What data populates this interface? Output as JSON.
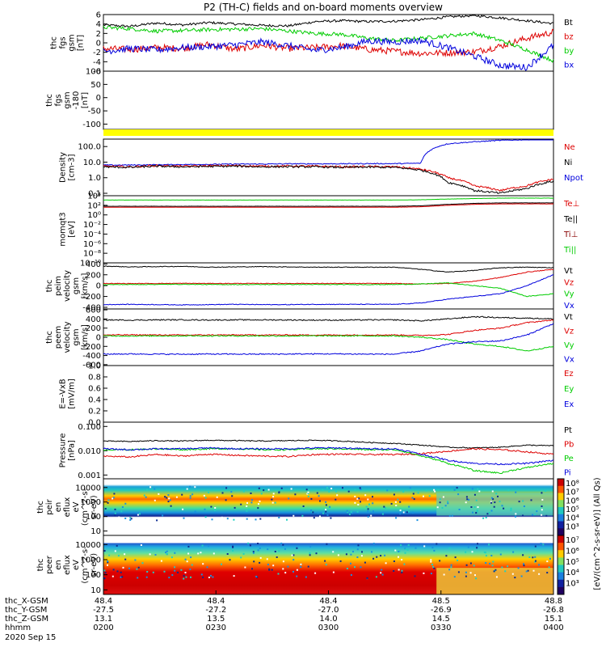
{
  "chart_data": {
    "type": "line",
    "title": "P2 (TH-C) fields and on-board moments overview",
    "date": "2020 Sep 15",
    "panels": [
      {
        "id": "fgs",
        "ylabel": [
          "thc",
          "fgs",
          "gsm",
          "[nT]"
        ],
        "yticks": [
          "6",
          "4",
          "2",
          "0",
          "-2",
          "-4",
          "-6"
        ],
        "legend": [
          {
            "name": "Bt",
            "color": "#000000"
          },
          {
            "name": "bz",
            "color": "#dd0000"
          },
          {
            "name": "by",
            "color": "#00cc00"
          },
          {
            "name": "bx",
            "color": "#0000dd"
          }
        ],
        "ylim": [
          -6,
          6
        ],
        "series": [
          {
            "name": "Bt",
            "color": "#000000",
            "noise": 0.25,
            "y": [
              3.8,
              3.5,
              4.2,
              3.8,
              4.3,
              4.0,
              3.7,
              3.6,
              4.5,
              4.7,
              4.5,
              4.6,
              4.9,
              5.5,
              5.8,
              5.3,
              4.7,
              4.1
            ]
          },
          {
            "name": "bz",
            "color": "#dd0000",
            "noise": 0.7,
            "y": [
              -1.2,
              -1.4,
              -1.0,
              -1.2,
              -0.3,
              -1.4,
              -0.5,
              -1.2,
              -1.0,
              -0.6,
              -1.4,
              -1.8,
              -2.2,
              -2.1,
              -1.9,
              -0.7,
              1.0,
              2.3
            ]
          },
          {
            "name": "by",
            "color": "#00cc00",
            "noise": 0.4,
            "y": [
              3.3,
              3.0,
              2.5,
              2.6,
              2.8,
              2.9,
              3.0,
              2.5,
              2.0,
              1.8,
              1.0,
              0.5,
              1.0,
              1.5,
              2.0,
              0.5,
              -1.5,
              -3.8
            ]
          },
          {
            "name": "bx",
            "color": "#0000dd",
            "noise": 0.7,
            "y": [
              -1.8,
              -1.2,
              -1.5,
              -1.0,
              -0.8,
              -0.4,
              0.2,
              -0.6,
              -1.6,
              -1.0,
              0.4,
              0.2,
              0.5,
              -1.0,
              -2.8,
              -4.8,
              -5.2,
              -0.5
            ]
          }
        ]
      },
      {
        "id": "fgs-theta",
        "ylabel": [
          "thc",
          "fgs",
          "gsm",
          "-180",
          "[nT]"
        ],
        "yticks": [
          "100",
          "50",
          "0",
          "-50",
          "-100"
        ],
        "legend": [],
        "ylim": [
          -120,
          100
        ],
        "series": []
      },
      {
        "id": "flag",
        "ylabel": [],
        "yticks": [],
        "legend": [],
        "bar_color": "#ffff00"
      },
      {
        "id": "density",
        "ylabel": [
          "Density",
          "[cm-3]"
        ],
        "yticks": [
          "100.0",
          "10.0",
          "1.0",
          "0.1"
        ],
        "ylog": [
          0.07,
          300
        ],
        "legend": [
          {
            "name": "Ne",
            "color": "#dd0000"
          },
          {
            "name": "Ni",
            "color": "#000000"
          },
          {
            "name": "Npot",
            "color": "#0000dd"
          }
        ],
        "series": [
          {
            "name": "Npot",
            "color": "#0000dd",
            "noise": 0.03,
            "y": [
              6.5,
              6.5,
              6.8,
              7.0,
              7.2,
              7.5,
              7.5,
              7.8,
              7.8,
              7.8,
              8.0,
              8.0,
              8.5,
              150,
              200,
              250,
              280,
              300
            ]
          },
          {
            "name": "Ne",
            "color": "#dd0000",
            "noise": 0.06,
            "y": [
              5.5,
              5.0,
              6.0,
              5.5,
              5.8,
              6.0,
              5.5,
              5.6,
              5.5,
              5.0,
              5.2,
              5.0,
              3.5,
              1.0,
              0.3,
              0.15,
              0.3,
              0.8
            ]
          },
          {
            "name": "Ni",
            "color": "#000000",
            "noise": 0.06,
            "y": [
              5.0,
              4.6,
              5.5,
              5.0,
              5.3,
              5.5,
              5.0,
              5.1,
              5.0,
              4.6,
              4.8,
              4.6,
              3.0,
              0.5,
              0.15,
              0.1,
              0.2,
              0.6
            ]
          }
        ]
      },
      {
        "id": "moments-temp",
        "ylabel": [
          "momqt3",
          "[eV]"
        ],
        "yticks": [
          "10⁴",
          "10²",
          "10⁰",
          "10⁻²",
          "10⁻⁴",
          "10⁻⁶",
          "10⁻⁸",
          "10⁻¹⁰"
        ],
        "ylim": [
          -10,
          4
        ],
        "legend": [
          {
            "name": "Te⊥",
            "color": "#dd0000"
          },
          {
            "name": "Te||",
            "color": "#000000"
          },
          {
            "name": "Ti⊥",
            "color": "#880000"
          },
          {
            "name": "Ti||",
            "color": "#00cc00"
          }
        ],
        "series": [
          {
            "name": "Ti||",
            "color": "#00cc00",
            "noise": 0.02,
            "y": [
              3.1,
              3.1,
              3.1,
              3.1,
              3.1,
              3.1,
              3.1,
              3.1,
              3.1,
              3.1,
              3.1,
              3.1,
              3.15,
              3.3,
              3.4,
              3.5,
              3.5,
              3.5
            ]
          },
          {
            "name": "Te||",
            "color": "#000000",
            "noise": 0.02,
            "y": [
              1.8,
              1.8,
              1.8,
              1.8,
              1.8,
              1.8,
              1.8,
              1.8,
              1.8,
              1.8,
              1.8,
              1.8,
              1.9,
              2.2,
              2.4,
              2.5,
              2.5,
              2.5
            ]
          },
          {
            "name": "Te⊥",
            "color": "#dd0000",
            "noise": 0.02,
            "y": [
              1.6,
              1.6,
              1.6,
              1.6,
              1.6,
              1.6,
              1.6,
              1.6,
              1.6,
              1.6,
              1.6,
              1.6,
              1.7,
              2.0,
              2.2,
              2.3,
              2.3,
              2.3
            ]
          }
        ]
      },
      {
        "id": "peim",
        "ylabel": [
          "thc",
          "peim",
          "velocity",
          "gsm",
          "[km/s]"
        ],
        "yticks": [
          "400",
          "200",
          "0",
          "-200",
          "-400"
        ],
        "ylim": [
          -430,
          420
        ],
        "legend": [
          {
            "name": "Vt",
            "color": "#000000"
          },
          {
            "name": "Vz",
            "color": "#dd0000"
          },
          {
            "name": "Vy",
            "color": "#00cc00"
          },
          {
            "name": "Vx",
            "color": "#0000dd"
          }
        ],
        "series": [
          {
            "name": "Vt",
            "color": "#000000",
            "noise": 6,
            "y": [
              360,
              345,
              350,
              355,
              340,
              345,
              350,
              345,
              340,
              340,
              340,
              340,
              300,
              250,
              280,
              330,
              340,
              330
            ]
          },
          {
            "name": "Vz",
            "color": "#dd0000",
            "noise": 6,
            "y": [
              40,
              38,
              40,
              42,
              40,
              40,
              40,
              42,
              40,
              40,
              40,
              40,
              30,
              40,
              80,
              150,
              250,
              300
            ]
          },
          {
            "name": "Vy",
            "color": "#00cc00",
            "noise": 6,
            "y": [
              20,
              20,
              22,
              25,
              20,
              20,
              20,
              22,
              20,
              20,
              20,
              20,
              30,
              50,
              0,
              -50,
              -200,
              -150
            ]
          },
          {
            "name": "Vx",
            "color": "#0000dd",
            "noise": 6,
            "y": [
              -350,
              -345,
              -350,
              -355,
              -350,
              -345,
              -350,
              -350,
              -345,
              -345,
              -345,
              -345,
              -320,
              -250,
              -200,
              -150,
              0,
              200
            ]
          }
        ]
      },
      {
        "id": "peem",
        "ylabel": [
          "thc",
          "peem",
          "velocity",
          "gsm",
          "[km/s]"
        ],
        "yticks": [
          "600",
          "400",
          "200",
          "0",
          "-200",
          "-400",
          "-600"
        ],
        "ylim": [
          -620,
          620
        ],
        "legend": [
          {
            "name": "Vt",
            "color": "#000000"
          },
          {
            "name": "Vz",
            "color": "#dd0000"
          },
          {
            "name": "Vy",
            "color": "#00cc00"
          },
          {
            "name": "Vx",
            "color": "#0000dd"
          }
        ],
        "series": [
          {
            "name": "Vt",
            "color": "#000000",
            "noise": 12,
            "y": [
              380,
              375,
              380,
              382,
              378,
              380,
              380,
              378,
              375,
              375,
              380,
              380,
              360,
              400,
              450,
              430,
              420,
              400
            ]
          },
          {
            "name": "Vz",
            "color": "#dd0000",
            "noise": 12,
            "y": [
              50,
              52,
              50,
              48,
              50,
              50,
              50,
              50,
              48,
              48,
              50,
              50,
              40,
              60,
              150,
              200,
              320,
              380
            ]
          },
          {
            "name": "Vy",
            "color": "#00cc00",
            "noise": 12,
            "y": [
              30,
              28,
              30,
              32,
              30,
              30,
              30,
              28,
              30,
              30,
              30,
              30,
              0,
              -50,
              -150,
              -200,
              -300,
              -200
            ]
          },
          {
            "name": "Vx",
            "color": "#0000dd",
            "noise": 12,
            "y": [
              -370,
              -365,
              -370,
              -372,
              -368,
              -370,
              -370,
              -368,
              -365,
              -365,
              -370,
              -370,
              -300,
              -150,
              -100,
              -80,
              50,
              300
            ]
          }
        ]
      },
      {
        "id": "efield",
        "ylabel": [
          "E=-VxB",
          "[mV/m]"
        ],
        "yticks": [
          "1.0",
          "0.8",
          "0.6",
          "0.4",
          "0.2",
          "0.0"
        ],
        "ylim": [
          0,
          1
        ],
        "legend": [
          {
            "name": "Ez",
            "color": "#dd0000"
          },
          {
            "name": "Ey",
            "color": "#00cc00"
          },
          {
            "name": "Ex",
            "color": "#0000dd"
          }
        ],
        "series": []
      },
      {
        "id": "pressure",
        "ylabel": [
          "Pressure",
          "[nPa]"
        ],
        "yticks": [
          "0.100",
          "0.010",
          "0.001"
        ],
        "ylog": [
          0.0007,
          0.15
        ],
        "legend": [
          {
            "name": "Pt",
            "color": "#000000"
          },
          {
            "name": "Pb",
            "color": "#dd0000"
          },
          {
            "name": "Pe",
            "color": "#00cc00"
          },
          {
            "name": "Pi",
            "color": "#0000dd"
          }
        ],
        "series": [
          {
            "name": "Pt",
            "color": "#000000",
            "noise": 0.02,
            "y": [
              0.025,
              0.024,
              0.026,
              0.025,
              0.027,
              0.026,
              0.025,
              0.026,
              0.027,
              0.025,
              0.022,
              0.02,
              0.017,
              0.014,
              0.013,
              0.014,
              0.017,
              0.016
            ]
          },
          {
            "name": "Pb",
            "color": "#dd0000",
            "noise": 0.03,
            "y": [
              0.006,
              0.0055,
              0.007,
              0.006,
              0.0072,
              0.0065,
              0.006,
              0.0058,
              0.007,
              0.0072,
              0.007,
              0.007,
              0.0075,
              0.0095,
              0.012,
              0.011,
              0.009,
              0.007
            ]
          },
          {
            "name": "Pe",
            "color": "#00cc00",
            "noise": 0.03,
            "y": [
              0.011,
              0.011,
              0.012,
              0.011,
              0.012,
              0.012,
              0.011,
              0.011,
              0.012,
              0.012,
              0.011,
              0.011,
              0.006,
              0.003,
              0.0015,
              0.0012,
              0.002,
              0.003
            ]
          },
          {
            "name": "Pi",
            "color": "#0000dd",
            "noise": 0.03,
            "y": [
              0.012,
              0.011,
              0.012,
              0.012,
              0.013,
              0.012,
              0.012,
              0.012,
              0.013,
              0.013,
              0.012,
              0.012,
              0.007,
              0.004,
              0.003,
              0.0028,
              0.003,
              0.004
            ]
          }
        ]
      },
      {
        "id": "peir",
        "type": "heatmap",
        "ylabel": [
          "thc",
          "peir",
          "en",
          "eflux",
          "eV",
          "(cm^2-s-",
          "sr-eV)"
        ],
        "yticks": [
          "10000",
          "1000",
          "100",
          "10"
        ],
        "ylog": [
          5,
          40000
        ],
        "legend": [],
        "colorbar_ticks": [
          "10⁸",
          "10⁷",
          "10⁶",
          "10⁵",
          "10⁴",
          "10³"
        ]
      },
      {
        "id": "peer",
        "type": "heatmap",
        "ylabel": [
          "thc",
          "peer",
          "en",
          "eflux",
          "eV",
          "(cm^2-s-",
          "sr-eV)"
        ],
        "yticks": [
          "10000",
          "1000",
          "100",
          "10"
        ],
        "ylog": [
          5,
          40000
        ],
        "legend": [],
        "colorbar_ticks": [
          "10⁷",
          "10⁶",
          "10⁵",
          "10⁴",
          "10³"
        ]
      }
    ],
    "colorbar_label": "[eV/(cm^2-s-sr-eV)] (All Qs)",
    "xaxis_rows": [
      {
        "label": "thc_X-GSM",
        "values": [
          "48.4",
          "48.4",
          "48.4",
          "48.5",
          "48.8"
        ]
      },
      {
        "label": "thc_Y-GSM",
        "values": [
          "-27.5",
          "-27.2",
          "-27.0",
          "-26.9",
          "-26.8"
        ]
      },
      {
        "label": "thc_Z-GSM",
        "values": [
          "13.1",
          "13.5",
          "14.0",
          "14.5",
          "15.1"
        ]
      },
      {
        "label": "hhmm",
        "values": [
          "0200",
          "0230",
          "0300",
          "0330",
          "0400"
        ]
      }
    ]
  }
}
